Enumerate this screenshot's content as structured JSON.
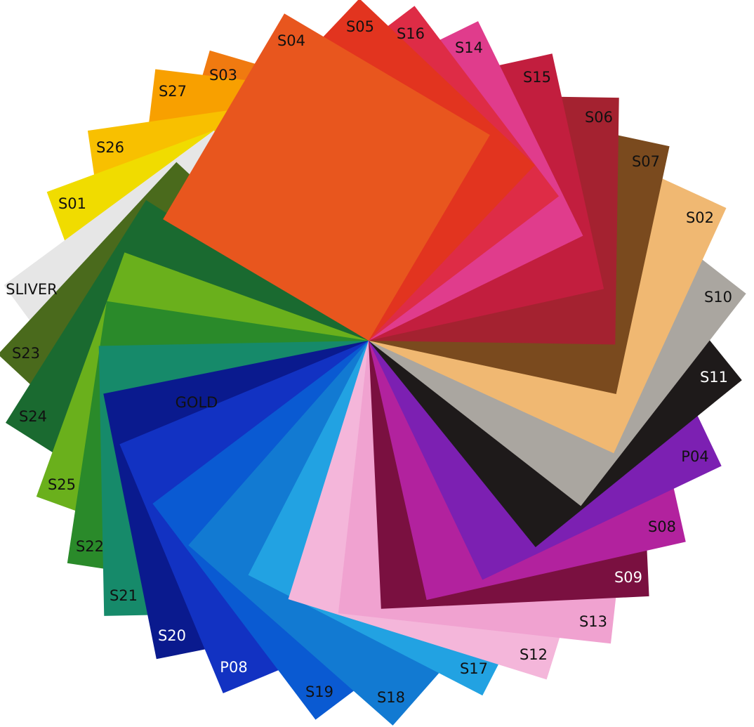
{
  "sheets": [
    {
      "label": "S04",
      "color": "#e8561e",
      "text_color": "#111111"
    },
    {
      "label": "S05",
      "color": "#e2341f",
      "text_color": "#111111"
    },
    {
      "label": "S16",
      "color": "#de2c46",
      "text_color": "#111111"
    },
    {
      "label": "S14",
      "color": "#e03c8c",
      "text_color": "#111111"
    },
    {
      "label": "S15",
      "color": "#c21e3e",
      "text_color": "#111111"
    },
    {
      "label": "S06",
      "color": "#a42230",
      "text_color": "#111111"
    },
    {
      "label": "S07",
      "color": "#7a4a1e",
      "text_color": "#111111"
    },
    {
      "label": "S02",
      "color": "#f0b872",
      "text_color": "#111111"
    },
    {
      "label": "S10",
      "color": "#aaa6a0",
      "text_color": "#111111"
    },
    {
      "label": "S11",
      "color": "#1e1a1a",
      "text_color": "#ffffff"
    },
    {
      "label": "P04",
      "color": "#7c20b2",
      "text_color": "#111111"
    },
    {
      "label": "S08",
      "color": "#b2229e",
      "text_color": "#111111"
    },
    {
      "label": "S09",
      "color": "#7a1040",
      "text_color": "#ffffff"
    },
    {
      "label": "S13",
      "color": "#f0a2d0",
      "text_color": "#111111"
    },
    {
      "label": "S12",
      "color": "#f4b6da",
      "text_color": "#111111"
    },
    {
      "label": "S17",
      "color": "#22a2e2",
      "text_color": "#111111"
    },
    {
      "label": "S18",
      "color": "#127ad2",
      "text_color": "#111111"
    },
    {
      "label": "S19",
      "color": "#0a5ad2",
      "text_color": "#111111"
    },
    {
      "label": "P08",
      "color": "#1232c2",
      "text_color": "#ffffff"
    },
    {
      "label": "S20",
      "color": "#0a1a8e",
      "text_color": "#ffffff"
    },
    {
      "label": "S21",
      "color": "#168a6a",
      "text_color": "#111111"
    },
    {
      "label": "S22",
      "color": "#2a8a2a",
      "text_color": "#111111"
    },
    {
      "label": "S25",
      "color": "#6ab01c",
      "text_color": "#111111"
    },
    {
      "label": "S24",
      "color": "#1a6a30",
      "text_color": "#111111"
    },
    {
      "label": "S23",
      "color": "#4a6a1c",
      "text_color": "#111111"
    },
    {
      "label": "SLIVER",
      "color": "#e6e6e6",
      "text_color": "#111111"
    },
    {
      "label": "GOLD",
      "color": "#f0c800",
      "text_color": "#111111"
    },
    {
      "label": "S01",
      "color": "#f0dc00",
      "text_color": "#111111"
    },
    {
      "label": "S26",
      "color": "#f8c000",
      "text_color": "#111111"
    },
    {
      "label": "S27",
      "color": "#f8a000",
      "text_color": "#111111"
    },
    {
      "label": "S03",
      "color": "#f07a10",
      "text_color": "#111111"
    }
  ]
}
